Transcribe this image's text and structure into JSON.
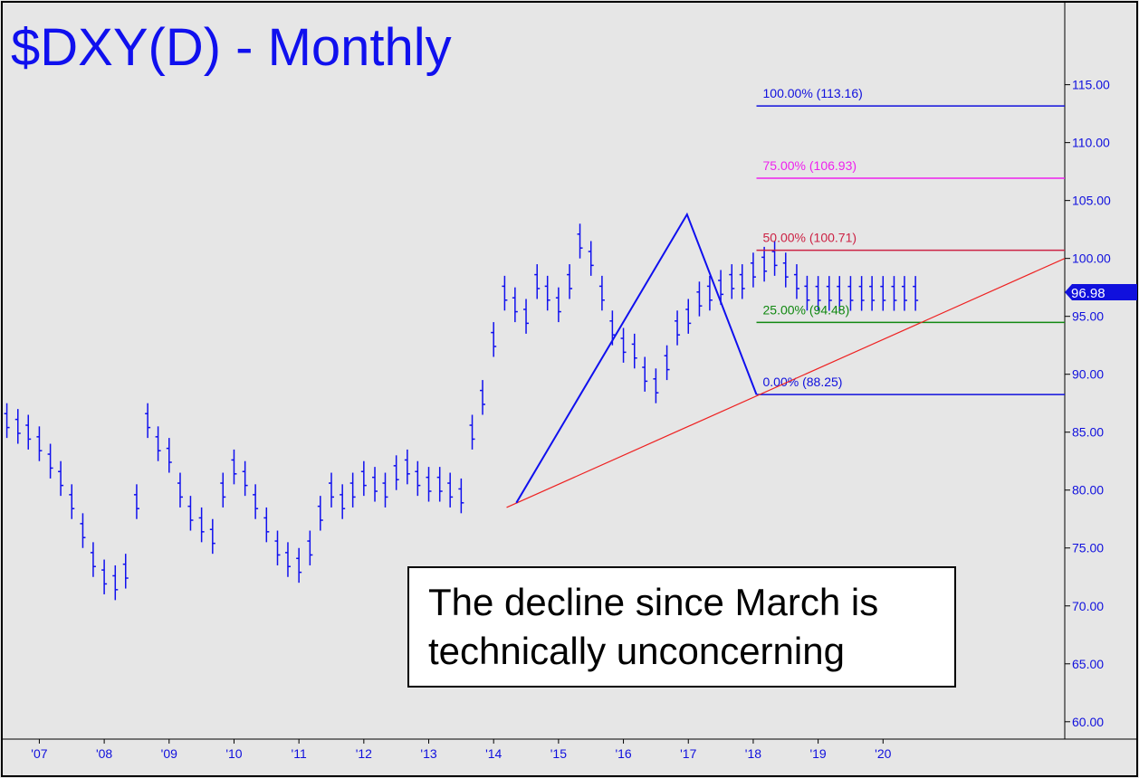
{
  "chart_data": {
    "type": "ohlc",
    "title": "$DXY(D) - Monthly",
    "price_label": "96.98",
    "y_ticks": [
      "115.00",
      "110.00",
      "105.00",
      "100.00",
      "95.00",
      "90.00",
      "85.00",
      "80.00",
      "75.00",
      "70.00",
      "65.00",
      "60.00"
    ],
    "x_ticks": [
      "'07",
      "'08",
      "'09",
      "'10",
      "'11",
      "'12",
      "'13",
      "'14",
      "'15",
      "'16",
      "'17",
      "'18",
      "'19",
      "'20"
    ],
    "ylim": [
      58.5,
      122
    ],
    "xlim": [
      2006.45,
      2022.8
    ],
    "fib_levels": [
      {
        "label": "100.00% (113.16)",
        "value": 113.16,
        "color": "#1010dd"
      },
      {
        "label": "75.00% (106.93)",
        "value": 106.93,
        "color": "#ee22ee"
      },
      {
        "label": "50.00% (100.71)",
        "value": 100.71,
        "color": "#cc2244"
      },
      {
        "label": "25.00% (94.48)",
        "value": 94.48,
        "color": "#118811"
      },
      {
        "label": "0.00% (88.25)",
        "value": 88.25,
        "color": "#1010dd"
      }
    ],
    "fib_x_start": 2018.05,
    "abc_pattern": [
      [
        2014.35,
        78.9
      ],
      [
        2016.98,
        103.8
      ],
      [
        2018.05,
        88.25
      ]
    ],
    "trendline": {
      "from": [
        2014.2,
        78.5
      ],
      "to": [
        2022.8,
        100.0
      ]
    },
    "series": [
      {
        "x": [
          2006.5,
          2006.67,
          2006.83,
          2007.0,
          2007.17,
          2007.33,
          2007.5,
          2007.67,
          2007.83,
          2008.0,
          2008.17,
          2008.33,
          2008.5,
          2008.67,
          2008.83,
          2009.0,
          2009.17,
          2009.33,
          2009.5,
          2009.67,
          2009.83,
          2010.0,
          2010.17,
          2010.33,
          2010.5,
          2010.67,
          2010.83,
          2011.0,
          2011.17,
          2011.33,
          2011.5,
          2011.67,
          2011.83,
          2012.0,
          2012.17,
          2012.33,
          2012.5,
          2012.67,
          2012.83,
          2013.0,
          2013.17,
          2013.33,
          2013.5,
          2013.67,
          2013.83,
          2014.0,
          2014.17,
          2014.33,
          2014.5,
          2014.67,
          2014.83,
          2015.0,
          2015.17,
          2015.33,
          2015.5,
          2015.67,
          2015.83,
          2016.0,
          2016.17,
          2016.33,
          2016.5,
          2016.67,
          2016.83,
          2017.0,
          2017.17,
          2017.33,
          2017.5,
          2017.67,
          2017.83,
          2018.0,
          2018.17,
          2018.33,
          2018.5,
          2018.67,
          2018.83,
          2019.0,
          2019.17,
          2019.33,
          2019.5,
          2019.67,
          2019.83,
          2020.0,
          2020.17,
          2020.33,
          2020.5
        ],
        "values": [
          86,
          85.5,
          85,
          84,
          82.5,
          81,
          79,
          76.5,
          74,
          72.5,
          72,
          73,
          79,
          86,
          84,
          83,
          80,
          78,
          77,
          76,
          80,
          82,
          81,
          79,
          77,
          75,
          74,
          73.5,
          75,
          78,
          80,
          79,
          80,
          81,
          80.5,
          80,
          81.5,
          82,
          81,
          80.5,
          80.5,
          80,
          79.5,
          85,
          88,
          93,
          97,
          96,
          95,
          98,
          97,
          96,
          98,
          101.5,
          100,
          97,
          94,
          92.5,
          92,
          90,
          89,
          91,
          94,
          95,
          96.5,
          97,
          97.5,
          98,
          98,
          99,
          99.5,
          100,
          99,
          98,
          97,
          96.98,
          96.98,
          96.98,
          96.98,
          96.98,
          96.98,
          96.98,
          96.98,
          96.98,
          96.98
        ]
      }
    ],
    "annotation": [
      "The decline since March is",
      "technically unconcerning"
    ]
  }
}
